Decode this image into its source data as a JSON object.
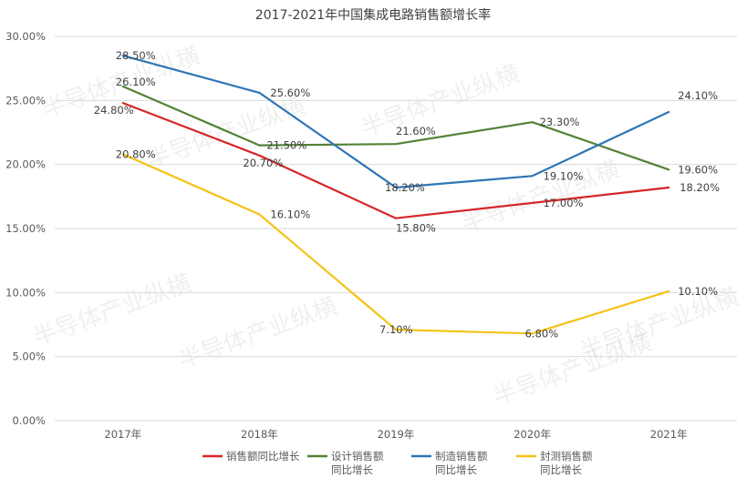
{
  "chart_data": {
    "type": "line",
    "title": "2017-2021年中国集成电路销售额增长率",
    "categories": [
      "2017年",
      "2018年",
      "2019年",
      "2020年",
      "2021年"
    ],
    "ylim": [
      0,
      30
    ],
    "yticks": [
      "0.00%",
      "5.00%",
      "10.00%",
      "15.00%",
      "20.00%",
      "25.00%",
      "30.00%"
    ],
    "ytick_values": [
      0,
      5,
      10,
      15,
      20,
      25,
      30
    ],
    "grid": true,
    "legend_position": "bottom",
    "watermark": "半导体产业纵横",
    "series": [
      {
        "name": "销售额同比增长",
        "name_lines": [
          "销售额同比增长"
        ],
        "color": "#d62728",
        "values": [
          24.8,
          20.7,
          15.8,
          17.0,
          18.2
        ],
        "labels": [
          "24.80%",
          "20.70%",
          "15.80%",
          "17.00%",
          "18.20%"
        ]
      },
      {
        "name": "设计销售额同比增长",
        "name_lines": [
          "设计销售额",
          "同比增长"
        ],
        "color": "#548235",
        "values": [
          26.1,
          21.5,
          21.6,
          23.3,
          19.6
        ],
        "labels": [
          "26.10%",
          "21.50%",
          "21.60%",
          "23.30%",
          "19.60%"
        ]
      },
      {
        "name": "制造销售额同比增长",
        "name_lines": [
          "制造销售额",
          "同比增长"
        ],
        "color": "#2e75b6",
        "values": [
          28.5,
          25.6,
          18.2,
          19.1,
          24.1
        ],
        "labels": [
          "28.50%",
          "25.60%",
          "18.20%",
          "19.10%",
          "24.10%"
        ]
      },
      {
        "name": "封测销售额同比增长",
        "name_lines": [
          "封测销售额",
          "同比增长"
        ],
        "color": "#f5c216",
        "values": [
          20.8,
          16.1,
          7.1,
          6.8,
          10.1
        ],
        "labels": [
          "20.80%",
          "16.10%",
          "7.10%",
          "6.80%",
          "10.10%"
        ]
      }
    ]
  }
}
